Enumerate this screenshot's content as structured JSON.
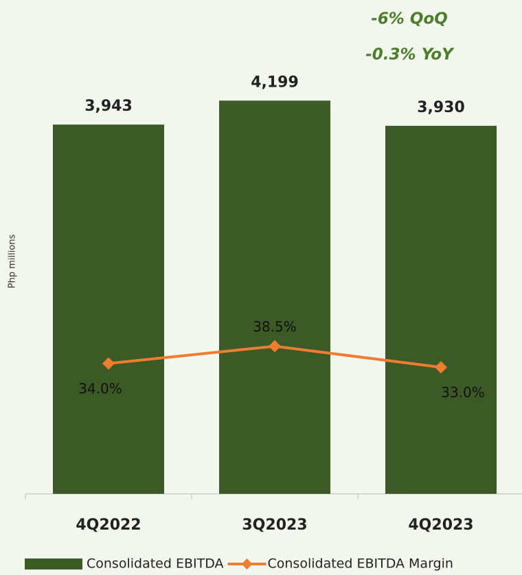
{
  "chart_data": {
    "type": "bar_line",
    "annotations": [
      "-6% QoQ",
      "-0.3% YoY"
    ],
    "y_label": "Php millions",
    "categories": [
      "4Q2022",
      "3Q2023",
      "4Q2023"
    ],
    "series": [
      {
        "name": "Consolidated EBITDA",
        "type": "bar",
        "color": "#3b5a25",
        "values": [
          3943,
          4199,
          3930
        ],
        "value_labels": [
          "3,943",
          "4,199",
          "3,930"
        ]
      },
      {
        "name": "Consolidated EBITDA Margin",
        "type": "line",
        "axis": "y2",
        "color": "#ee7d31",
        "values": [
          34.0,
          38.5,
          33.0
        ],
        "value_labels": [
          "34.0%",
          "38.5%",
          "33.0%"
        ]
      }
    ],
    "ylim": [
      0,
      5200
    ],
    "y2lim": [
      0,
      127
    ],
    "legend": "bottom"
  }
}
